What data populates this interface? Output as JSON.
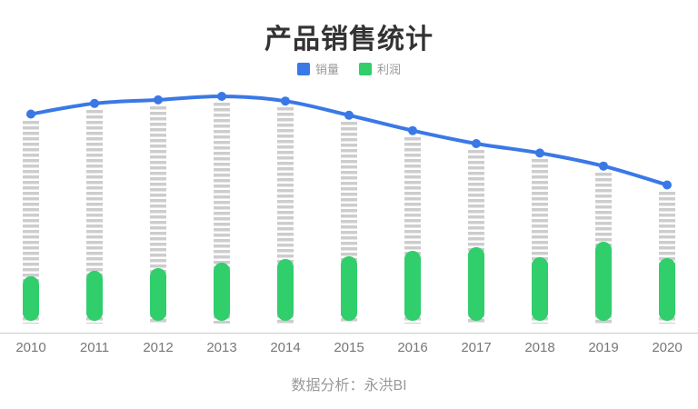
{
  "chart_data": {
    "type": "combo",
    "title": "产品销售统计",
    "categories": [
      "2010",
      "2011",
      "2012",
      "2013",
      "2014",
      "2015",
      "2016",
      "2017",
      "2018",
      "2019",
      "2020"
    ],
    "series": [
      {
        "name": "销量",
        "type": "line",
        "style": "smooth line with round dots",
        "color": "#3a78e6",
        "values": [
          92.5,
          97,
          98.5,
          100,
          98,
          92,
          85.5,
          80,
          76,
          70.5,
          62.5
        ]
      },
      {
        "name": "利润",
        "type": "bar",
        "style": "rounded pill bar",
        "color": "#31ce6c",
        "values": [
          19,
          21,
          22.5,
          24.5,
          26,
          27.5,
          29.5,
          31,
          27,
          33.5,
          26.5
        ]
      }
    ],
    "value_note": "no numeric y-axis shown; relative units where 销量 peak (2013) = 100",
    "dashed_column_color": "#cdcdcd",
    "dashed_column_note": "gray dashed placeholder column drops from each line dot to the baseline",
    "legend_position": "top-center",
    "grid": false,
    "x_axis": {
      "line_color": "#cccccc",
      "label_color": "#777777"
    },
    "background": "#ffffff"
  },
  "footer": {
    "caption": "数据分析：永洪BI"
  }
}
